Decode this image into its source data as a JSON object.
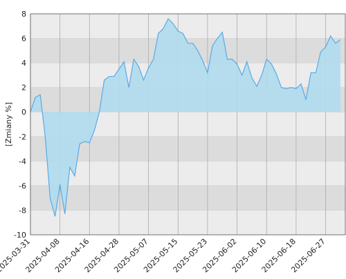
{
  "chart_data": {
    "type": "area",
    "y_label": "[Zmiany %]",
    "categories": [
      "2025-03-31",
      null,
      null,
      null,
      null,
      null,
      "2025-04-08",
      null,
      null,
      null,
      null,
      null,
      "2025-04-16",
      null,
      null,
      null,
      null,
      null,
      "2025-04-28",
      null,
      null,
      null,
      null,
      null,
      "2025-05-07",
      null,
      null,
      null,
      null,
      null,
      "2025-05-15",
      null,
      null,
      null,
      null,
      null,
      "2025-05-23",
      null,
      null,
      null,
      null,
      null,
      "2025-06-02",
      null,
      null,
      null,
      null,
      null,
      "2025-06-10",
      null,
      null,
      null,
      null,
      null,
      "2025-06-18",
      null,
      null,
      null,
      null,
      null,
      "2025-06-27",
      null,
      null,
      null
    ],
    "values": [
      0,
      1.2,
      1.4,
      -2,
      -7,
      -8.5,
      -5.9,
      -8.3,
      -4.5,
      -5.2,
      -2.6,
      -2.4,
      -2.5,
      -1.5,
      0,
      2.6,
      2.9,
      2.9,
      3.5,
      4.1,
      2.0,
      4.3,
      3.7,
      2.6,
      3.6,
      4.3,
      6.4,
      6.8,
      7.6,
      7.2,
      6.6,
      6.4,
      5.6,
      5.6,
      5.0,
      4.2,
      3.2,
      5.4,
      6.0,
      6.5,
      4.3,
      4.3,
      3.9,
      3.0,
      4.1,
      2.8,
      2.1,
      3.0,
      4.3,
      3.9,
      3.1,
      2.0,
      1.9,
      2.0,
      1.9,
      2.3,
      1.0,
      3.2,
      3.2,
      4.9,
      5.3,
      6.2,
      5.6,
      5.9
    ],
    "color": "#5aa9e6",
    "fill_color": "#b0dcee",
    "ylim": [
      -10,
      8
    ],
    "yticks": [
      -10,
      -8,
      -6,
      -4,
      -2,
      0,
      2,
      4,
      6,
      8
    ],
    "grid": true
  }
}
